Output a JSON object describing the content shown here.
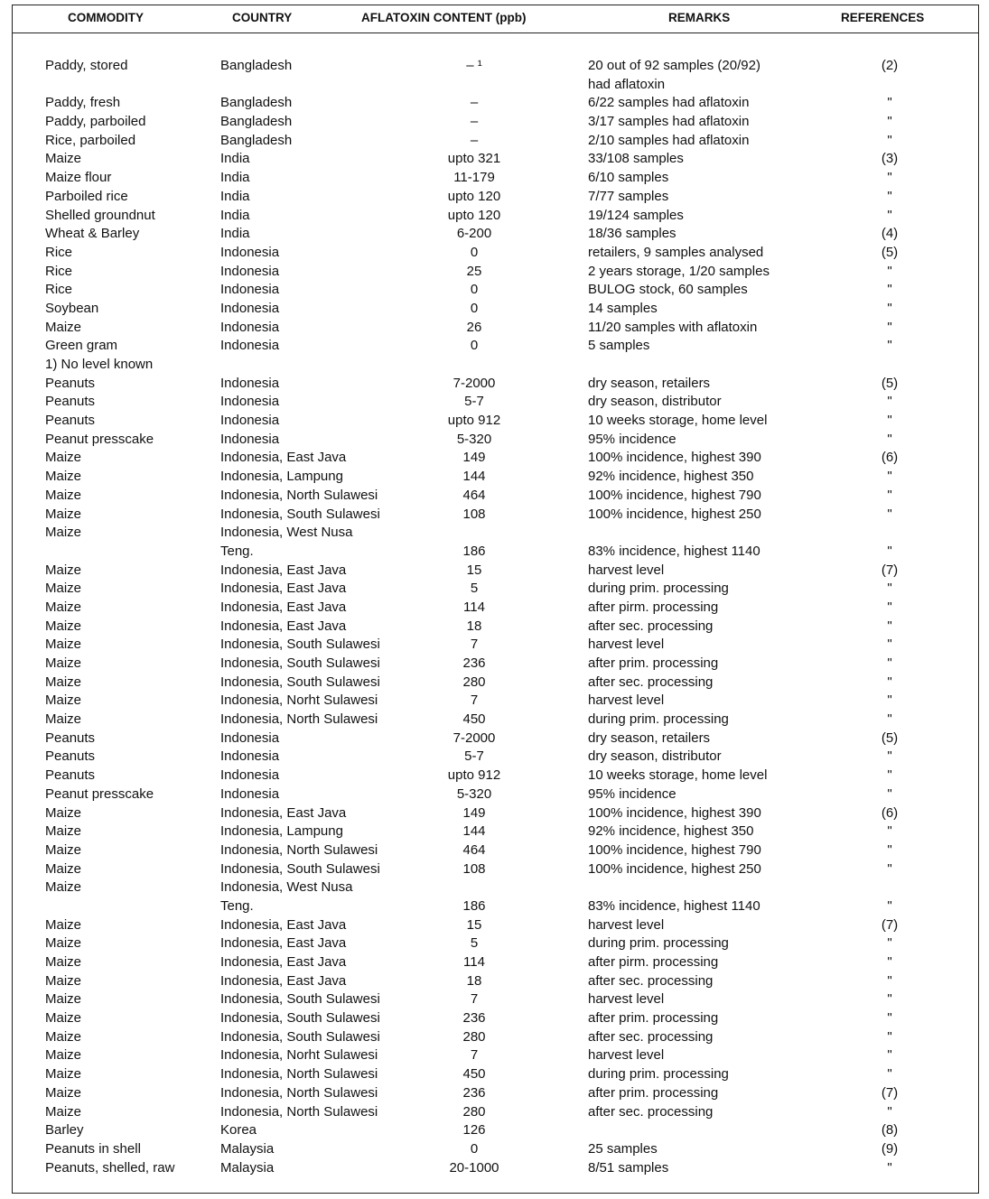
{
  "headers": [
    "COMMODITY",
    "COUNTRY",
    "AFLATOXIN CONTENT (ppb)",
    "REMARKS",
    "REFERENCES"
  ],
  "rows": [
    [
      "Paddy, stored",
      "Bangladesh",
      "– ¹",
      "20 out of 92 samples (20/92)",
      "(2)"
    ],
    [
      "",
      "",
      "",
      "had aflatoxin",
      ""
    ],
    [
      "Paddy, fresh",
      "Bangladesh",
      "–",
      "6/22 samples had aflatoxin",
      "\""
    ],
    [
      "Paddy, parboiled",
      "Bangladesh",
      "–",
      "3/17 samples had aflatoxin",
      "\""
    ],
    [
      "Rice, parboiled",
      "Bangladesh",
      "–",
      "2/10 samples had aflatoxin",
      "\""
    ],
    [
      "Maize",
      "India",
      "upto 321",
      "33/108 samples",
      "(3)"
    ],
    [
      "Maize flour",
      "India",
      "11-179",
      "6/10 samples",
      "\""
    ],
    [
      "Parboiled rice",
      "India",
      "upto 120",
      "7/77 samples",
      "\""
    ],
    [
      "Shelled groundnut",
      "India",
      "upto 120",
      "19/124 samples",
      "\""
    ],
    [
      "Wheat & Barley",
      "India",
      "6-200",
      "18/36 samples",
      "(4)"
    ],
    [
      "Rice",
      "Indonesia",
      "0",
      "retailers, 9 samples analysed",
      "(5)"
    ],
    [
      "Rice",
      "Indonesia",
      "25",
      "2 years storage, 1/20 samples",
      "\""
    ],
    [
      "Rice",
      "Indonesia",
      "0",
      "BULOG stock, 60 samples",
      "\""
    ],
    [
      "Soybean",
      "Indonesia",
      "0",
      "14 samples",
      "\""
    ],
    [
      "Maize",
      "Indonesia",
      "26",
      "11/20 samples with aflatoxin",
      "\""
    ],
    [
      "Green gram",
      "Indonesia",
      "0",
      "5 samples",
      "\""
    ],
    [
      "1) No level known",
      "",
      "",
      "",
      ""
    ],
    [
      "Peanuts",
      "Indonesia",
      "7-2000",
      "dry season, retailers",
      "(5)"
    ],
    [
      "Peanuts",
      "Indonesia",
      "5-7",
      "dry season, distributor",
      "\""
    ],
    [
      "Peanuts",
      "Indonesia",
      "upto 912",
      "10 weeks storage, home level",
      "\""
    ],
    [
      "Peanut presscake",
      "Indonesia",
      "5-320",
      "95% incidence",
      "\""
    ],
    [
      "Maize",
      "Indonesia, East Java",
      "149",
      "100% incidence, highest 390",
      "(6)"
    ],
    [
      "Maize",
      "Indonesia, Lampung",
      "144",
      "92% incidence, highest 350",
      "\""
    ],
    [
      "Maize",
      "Indonesia, North Sulawesi",
      "464",
      "100% incidence, highest 790",
      "\""
    ],
    [
      "Maize",
      "Indonesia, South Sulawesi",
      "108",
      "100% incidence, highest 250",
      "\""
    ],
    [
      "Maize",
      "Indonesia, West Nusa",
      "",
      "",
      ""
    ],
    [
      "",
      "Teng.",
      "186",
      "83% incidence, highest 1140",
      "\""
    ],
    [
      "Maize",
      "Indonesia, East Java",
      "15",
      "harvest level",
      "(7)"
    ],
    [
      "Maize",
      "Indonesia, East Java",
      "5",
      "during prim. processing",
      "\""
    ],
    [
      "Maize",
      "Indonesia, East Java",
      "114",
      "after pirm. processing",
      "\""
    ],
    [
      "Maize",
      "Indonesia, East Java",
      "18",
      "after sec. processing",
      "\""
    ],
    [
      "Maize",
      "Indonesia, South Sulawesi",
      "7",
      "harvest level",
      "\""
    ],
    [
      "Maize",
      "Indonesia, South Sulawesi",
      "236",
      "after prim. processing",
      "\""
    ],
    [
      "Maize",
      "Indonesia, South Sulawesi",
      "280",
      "after sec. processing",
      "\""
    ],
    [
      "Maize",
      "Indonesia, Norht Sulawesi",
      "7",
      "harvest level",
      "\""
    ],
    [
      "Maize",
      "Indonesia, North Sulawesi",
      "450",
      "during prim. processing",
      "\""
    ],
    [
      "Peanuts",
      "Indonesia",
      "7-2000",
      "dry season, retailers",
      "(5)"
    ],
    [
      "Peanuts",
      "Indonesia",
      "5-7",
      "dry season, distributor",
      "\""
    ],
    [
      "Peanuts",
      "Indonesia",
      "upto 912",
      "10 weeks storage, home level",
      "\""
    ],
    [
      "Peanut presscake",
      "Indonesia",
      "5-320",
      "95% incidence",
      "\""
    ],
    [
      "Maize",
      "Indonesia, East Java",
      "149",
      "100% incidence, highest 390",
      "(6)"
    ],
    [
      "Maize",
      "Indonesia, Lampung",
      "144",
      "92% incidence, highest 350",
      "\""
    ],
    [
      "Maize",
      "Indonesia, North Sulawesi",
      "464",
      "100% incidence, highest 790",
      "\""
    ],
    [
      "Maize",
      "Indonesia, South Sulawesi",
      "108",
      "100% incidence, highest 250",
      "\""
    ],
    [
      "Maize",
      "Indonesia, West Nusa",
      "",
      "",
      ""
    ],
    [
      "",
      "Teng.",
      "186",
      "83% incidence, highest 1140",
      "\""
    ],
    [
      "Maize",
      "Indonesia, East Java",
      "15",
      "harvest level",
      "(7)"
    ],
    [
      "Maize",
      "Indonesia, East Java",
      "5",
      "during prim. processing",
      "\""
    ],
    [
      "Maize",
      "Indonesia, East Java",
      "114",
      "after pirm. processing",
      "\""
    ],
    [
      "Maize",
      "Indonesia, East Java",
      "18",
      "after sec. processing",
      "\""
    ],
    [
      "Maize",
      "Indonesia, South Sulawesi",
      "7",
      "harvest level",
      "\""
    ],
    [
      "Maize",
      "Indonesia, South Sulawesi",
      "236",
      "after prim. processing",
      "\""
    ],
    [
      "Maize",
      "Indonesia, South Sulawesi",
      "280",
      "after sec. processing",
      "\""
    ],
    [
      "Maize",
      "Indonesia, Norht Sulawesi",
      "7",
      "harvest level",
      "\""
    ],
    [
      "Maize",
      "Indonesia, North Sulawesi",
      "450",
      "during prim. processing",
      "\""
    ],
    [
      "Maize",
      "Indonesia, North Sulawesi",
      "236",
      "after prim. processing",
      "(7)"
    ],
    [
      "Maize",
      "Indonesia, North Sulawesi",
      "280",
      "after sec. processing",
      "\""
    ],
    [
      "Barley",
      "Korea",
      "126",
      "",
      "(8)"
    ],
    [
      "Peanuts in shell",
      "Malaysia",
      "0",
      "25 samples",
      "(9)"
    ],
    [
      "Peanuts, shelled, raw",
      "Malaysia",
      "20-1000",
      "8/51 samples",
      "\""
    ]
  ]
}
